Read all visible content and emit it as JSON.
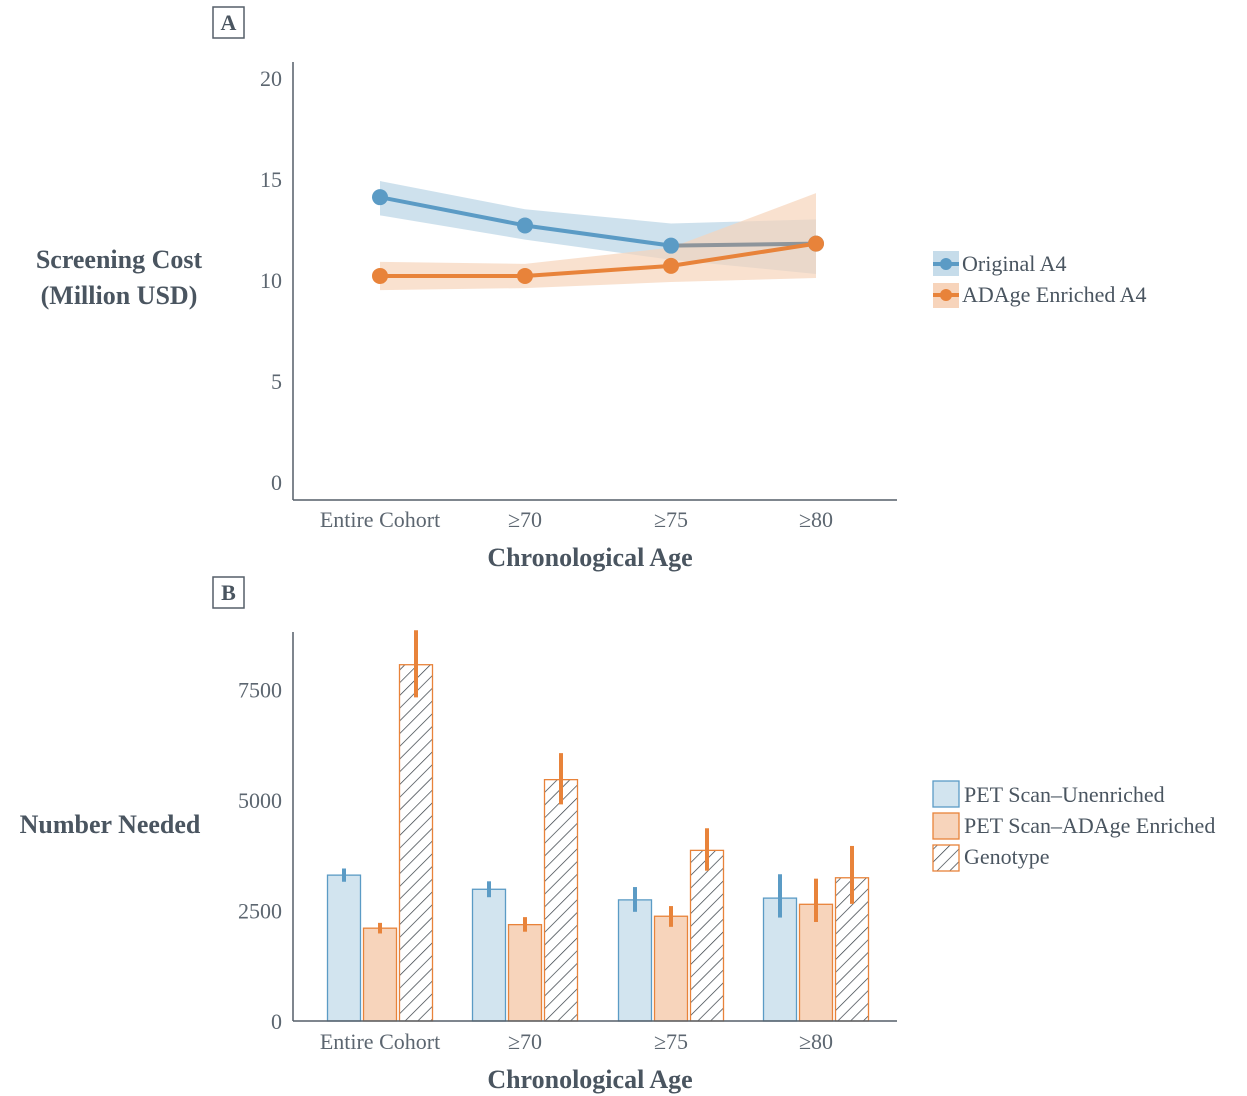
{
  "colors": {
    "blue": "#5b9bc5",
    "orange": "#e8833a",
    "blue_band": "#c6dcea",
    "orange_band": "#f7d4bb",
    "grey_line": "#8e959b",
    "axis": "#555f68",
    "text": "#4a5560"
  },
  "chart_data": [
    {
      "panel": "A",
      "type": "line",
      "xlabel": "Chronological Age",
      "ylabel_lines": [
        "Screening Cost",
        "(Million USD)"
      ],
      "categories": [
        "Entire Cohort",
        "≥70",
        "≥75",
        "≥80"
      ],
      "ylim": [
        0,
        20
      ],
      "yticks": [
        0,
        5,
        10,
        15,
        20
      ],
      "legend_position": "right",
      "series": [
        {
          "name": "Original A4",
          "color": "blue",
          "values": [
            14.1,
            12.7,
            11.7,
            11.8
          ],
          "lower": [
            13.2,
            12.0,
            11.0,
            10.3
          ],
          "upper": [
            14.9,
            13.5,
            12.8,
            13.0
          ]
        },
        {
          "name": "ADAge Enriched A4",
          "color": "orange",
          "values": [
            10.2,
            10.2,
            10.7,
            11.8
          ],
          "lower": [
            9.5,
            9.6,
            9.9,
            10.1
          ],
          "upper": [
            10.9,
            10.8,
            11.6,
            14.3
          ]
        }
      ]
    },
    {
      "panel": "B",
      "type": "bar",
      "xlabel": "Chronological Age",
      "ylabel": "Number Needed",
      "categories": [
        "Entire Cohort",
        "≥70",
        "≥75",
        "≥80"
      ],
      "ylim": [
        0,
        8800
      ],
      "yticks": [
        0,
        2500,
        5000,
        7500
      ],
      "legend_position": "right",
      "series": [
        {
          "name": "PET Scan–Unenriched",
          "style": "blue",
          "values": [
            3300,
            2980,
            2740,
            2780
          ],
          "err_low": [
            3150,
            2800,
            2470,
            2340
          ],
          "err_high": [
            3450,
            3160,
            3030,
            3320
          ]
        },
        {
          "name": "PET Scan–ADAge Enriched",
          "style": "orange",
          "values": [
            2100,
            2180,
            2370,
            2640
          ],
          "err_low": [
            1980,
            2020,
            2130,
            2240
          ],
          "err_high": [
            2220,
            2350,
            2600,
            3220
          ]
        },
        {
          "name": "Genotype",
          "style": "hatch",
          "values": [
            8060,
            5460,
            3860,
            3240
          ],
          "err_low": [
            7320,
            4900,
            3400,
            2650
          ],
          "err_high": [
            8840,
            6060,
            4360,
            3960
          ]
        }
      ]
    }
  ]
}
